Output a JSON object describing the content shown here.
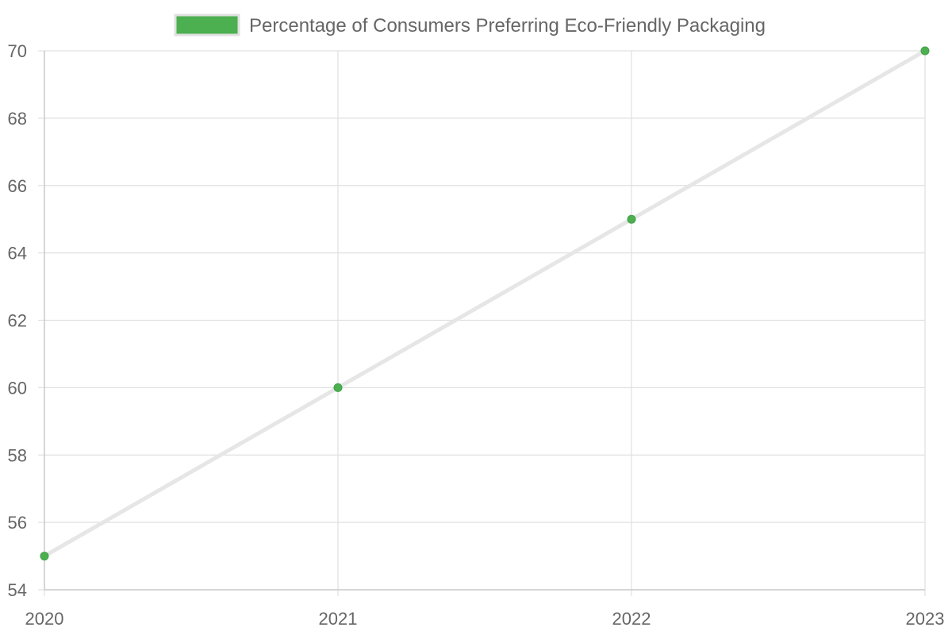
{
  "chart_data": {
    "type": "line",
    "categories": [
      "2020",
      "2021",
      "2022",
      "2023"
    ],
    "series": [
      {
        "name": "Percentage of Consumers Preferring Eco-Friendly Packaging",
        "values": [
          55,
          60,
          65,
          70
        ]
      }
    ],
    "ylim": [
      54,
      70
    ],
    "y_ticks": [
      54,
      56,
      58,
      60,
      62,
      64,
      66,
      68,
      70
    ],
    "grid": true,
    "legend_position": "top-center",
    "colors": {
      "point": "#4caf50",
      "point_border": "#43a047",
      "line": "#e6e6e6",
      "grid": "#e0e0e0",
      "text": "#666666"
    }
  }
}
